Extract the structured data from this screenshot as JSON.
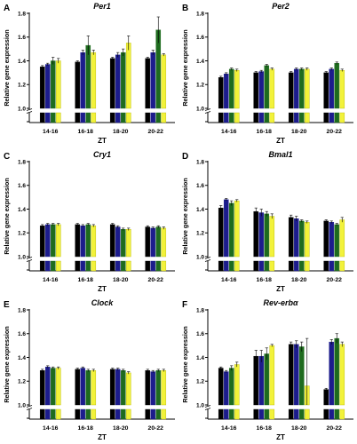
{
  "figure": {
    "x_axis_label": "ZT",
    "y_axis_label": "Relative gene expression",
    "series_colors": [
      "#000000",
      "#1c1c8c",
      "#1e6b1e",
      "#f2f23a"
    ]
  },
  "chart_data": [
    {
      "panel_label": "A",
      "title": "Per1",
      "type": "bar",
      "categories": [
        "14-16",
        "16-18",
        "18-20",
        "20-22"
      ],
      "ylim": [
        1.0,
        1.8
      ],
      "yticks": [
        "1.0",
        "1.2",
        "1.4",
        "1.6",
        "1.8"
      ],
      "xlabel": "ZT",
      "ylabel": "Relative gene expression",
      "series": [
        {
          "values": [
            1.35,
            1.39,
            1.42,
            1.42
          ],
          "errors": [
            0.01,
            0.01,
            0.01,
            0.01
          ]
        },
        {
          "values": [
            1.37,
            1.47,
            1.45,
            1.47
          ],
          "errors": [
            0.01,
            0.02,
            0.02,
            0.02
          ]
        },
        {
          "values": [
            1.4,
            1.53,
            1.47,
            1.66
          ],
          "errors": [
            0.03,
            0.08,
            0.03,
            0.11
          ]
        },
        {
          "values": [
            1.4,
            1.47,
            1.55,
            1.45
          ],
          "errors": [
            0.02,
            0.02,
            0.06,
            0.01
          ]
        }
      ]
    },
    {
      "panel_label": "B",
      "title": "Per2",
      "type": "bar",
      "categories": [
        "14-16",
        "16-18",
        "18-20",
        "20-22"
      ],
      "ylim": [
        1.0,
        1.8
      ],
      "yticks": [
        "1.0",
        "1.2",
        "1.4",
        "1.6",
        "1.8"
      ],
      "xlabel": "ZT",
      "ylabel": "Relative gene expression",
      "series": [
        {
          "values": [
            1.26,
            1.3,
            1.3,
            1.3
          ],
          "errors": [
            0.01,
            0.01,
            0.01,
            0.01
          ]
        },
        {
          "values": [
            1.29,
            1.31,
            1.33,
            1.33
          ],
          "errors": [
            0.01,
            0.01,
            0.01,
            0.01
          ]
        },
        {
          "values": [
            1.33,
            1.36,
            1.33,
            1.38
          ],
          "errors": [
            0.01,
            0.01,
            0.01,
            0.01
          ]
        },
        {
          "values": [
            1.32,
            1.33,
            1.33,
            1.32
          ],
          "errors": [
            0.01,
            0.01,
            0.01,
            0.01
          ]
        }
      ]
    },
    {
      "panel_label": "C",
      "title": "Cry1",
      "type": "bar",
      "categories": [
        "14-16",
        "16-18",
        "18-20",
        "20-22"
      ],
      "ylim": [
        1.0,
        1.8
      ],
      "yticks": [
        "1.0",
        "1.2",
        "1.4",
        "1.6",
        "1.8"
      ],
      "xlabel": "ZT",
      "ylabel": "Relative gene expression",
      "series": [
        {
          "values": [
            1.26,
            1.27,
            1.27,
            1.25
          ],
          "errors": [
            0.01,
            0.01,
            0.01,
            0.01
          ]
        },
        {
          "values": [
            1.27,
            1.26,
            1.25,
            1.24
          ],
          "errors": [
            0.01,
            0.01,
            0.01,
            0.01
          ]
        },
        {
          "values": [
            1.27,
            1.27,
            1.23,
            1.25
          ],
          "errors": [
            0.01,
            0.01,
            0.01,
            0.01
          ]
        },
        {
          "values": [
            1.27,
            1.26,
            1.23,
            1.24
          ],
          "errors": [
            0.01,
            0.01,
            0.01,
            0.01
          ]
        }
      ]
    },
    {
      "panel_label": "D",
      "title": "Bmal1",
      "type": "bar",
      "categories": [
        "14-16",
        "16-18",
        "18-20",
        "20-22"
      ],
      "ylim": [
        1.0,
        1.8
      ],
      "yticks": [
        "1.0",
        "1.2",
        "1.4",
        "1.6",
        "1.8"
      ],
      "xlabel": "ZT",
      "ylabel": "Relative gene expression",
      "series": [
        {
          "values": [
            1.41,
            1.38,
            1.33,
            1.3
          ],
          "errors": [
            0.02,
            0.03,
            0.02,
            0.01
          ]
        },
        {
          "values": [
            1.48,
            1.37,
            1.32,
            1.29
          ],
          "errors": [
            0.01,
            0.03,
            0.02,
            0.01
          ]
        },
        {
          "values": [
            1.45,
            1.36,
            1.3,
            1.27
          ],
          "errors": [
            0.02,
            0.02,
            0.01,
            0.01
          ]
        },
        {
          "values": [
            1.47,
            1.34,
            1.29,
            1.31
          ],
          "errors": [
            0.01,
            0.02,
            0.01,
            0.02
          ]
        }
      ]
    },
    {
      "panel_label": "E",
      "title": "Clock",
      "type": "bar",
      "categories": [
        "14-16",
        "16-18",
        "18-20",
        "20-22"
      ],
      "ylim": [
        1.0,
        1.8
      ],
      "yticks": [
        "1.0",
        "1.2",
        "1.4",
        "1.6",
        "1.8"
      ],
      "xlabel": "ZT",
      "ylabel": "Relative gene expression",
      "series": [
        {
          "values": [
            1.29,
            1.3,
            1.3,
            1.29
          ],
          "errors": [
            0.01,
            0.01,
            0.01,
            0.01
          ]
        },
        {
          "values": [
            1.32,
            1.31,
            1.3,
            1.28
          ],
          "errors": [
            0.01,
            0.01,
            0.01,
            0.01
          ]
        },
        {
          "values": [
            1.31,
            1.29,
            1.29,
            1.29
          ],
          "errors": [
            0.01,
            0.01,
            0.01,
            0.01
          ]
        },
        {
          "values": [
            1.31,
            1.29,
            1.27,
            1.29
          ],
          "errors": [
            0.01,
            0.01,
            0.01,
            0.01
          ]
        }
      ]
    },
    {
      "panel_label": "F",
      "title": "Rev-erbα",
      "type": "bar",
      "categories": [
        "14-16",
        "16-18",
        "18-20",
        "20-22"
      ],
      "ylim": [
        1.0,
        1.8
      ],
      "yticks": [
        "1.0",
        "1.2",
        "1.4",
        "1.6",
        "1.8"
      ],
      "xlabel": "ZT",
      "ylabel": "Relative gene expression",
      "series": [
        {
          "values": [
            1.31,
            1.41,
            1.51,
            1.13
          ],
          "errors": [
            0.01,
            0.05,
            0.02,
            0.01
          ]
        },
        {
          "values": [
            1.28,
            1.41,
            1.51,
            1.53
          ],
          "errors": [
            0.01,
            0.05,
            0.03,
            0.02
          ]
        },
        {
          "values": [
            1.31,
            1.43,
            1.49,
            1.56
          ],
          "errors": [
            0.02,
            0.05,
            0.04,
            0.04
          ]
        },
        {
          "values": [
            1.34,
            1.5,
            1.16,
            1.51
          ],
          "errors": [
            0.02,
            0.01,
            0.4,
            0.02
          ]
        }
      ]
    }
  ]
}
